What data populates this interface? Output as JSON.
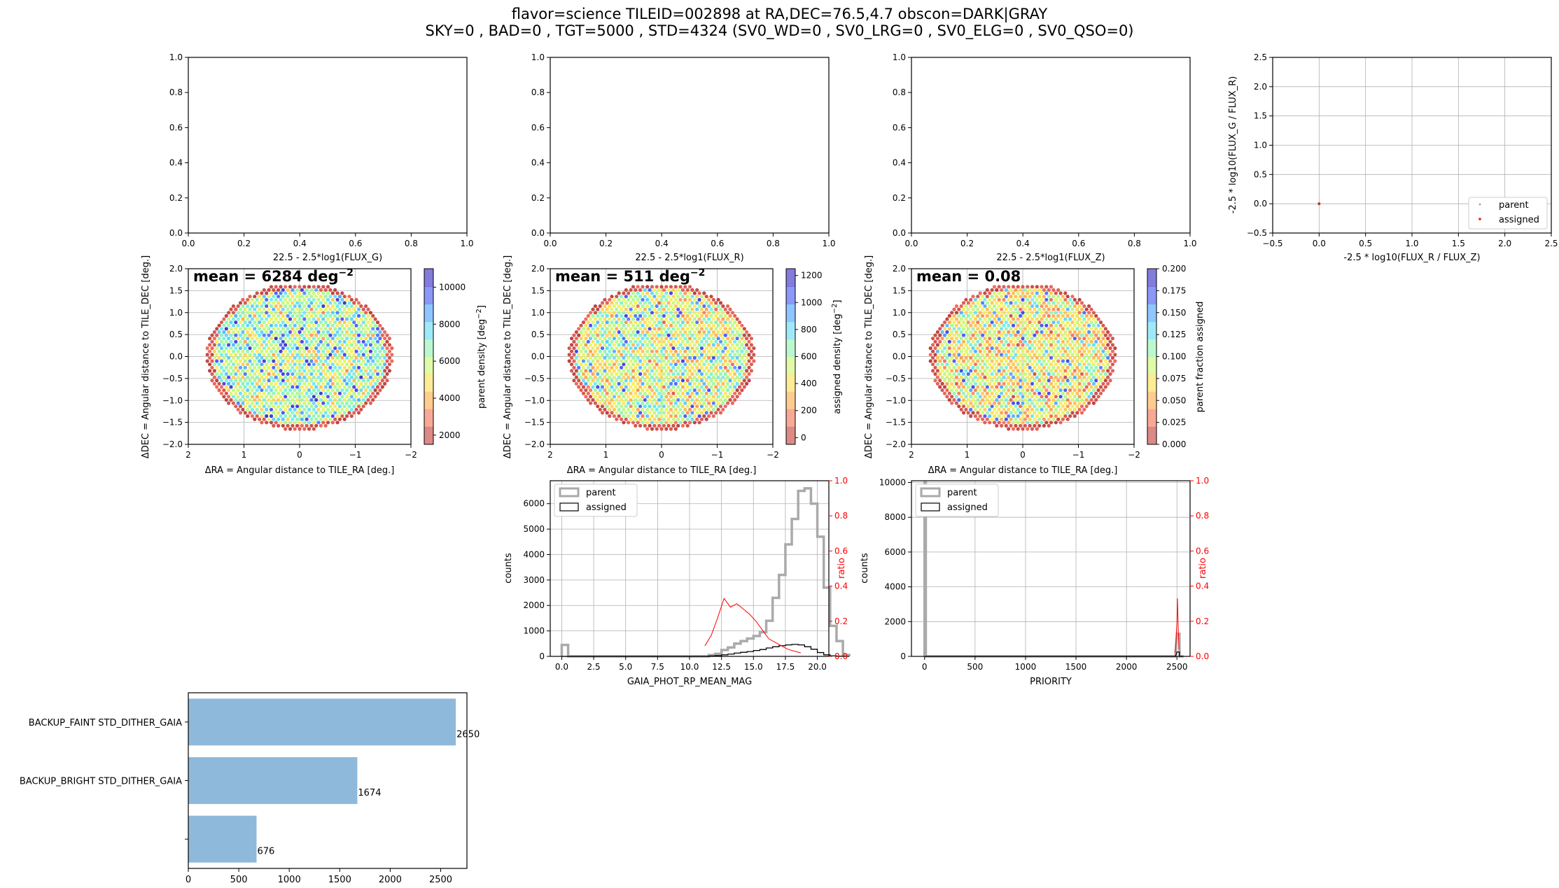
{
  "figure": {
    "title_line1": "flavor=science     TILEID=002898 at RA,DEC=76.5,4.7    obscon=DARK|GRAY",
    "title_line2": "SKY=0 , BAD=0 , TGT=5000 , STD=4324 (SV0_WD=0 , SV0_LRG=0 , SV0_ELG=0 , SV0_QSO=0)"
  },
  "colors": {
    "parent_hist": "#aaaaaa",
    "assigned_hist": "#000000",
    "ratio": "#ff0000",
    "bar": "#8fb9da",
    "grid": "#b0b0b0",
    "assigned_point": "#e41a1c"
  },
  "chart_data": [
    {
      "type": "scatter",
      "id": "mag-g",
      "xlabel": "22.5 - 2.5*log1(FLUX_G)",
      "ylabel": "",
      "xlim": [
        0,
        1
      ],
      "ylim": [
        0,
        1
      ],
      "xticks": [
        "0.0",
        "0.2",
        "0.4",
        "0.6",
        "0.8",
        "1.0"
      ],
      "yticks": [
        "0.0",
        "0.2",
        "0.4",
        "0.6",
        "0.8",
        "1.0"
      ],
      "grid": false,
      "series": []
    },
    {
      "type": "scatter",
      "id": "mag-r",
      "xlabel": "22.5 - 2.5*log1(FLUX_R)",
      "ylabel": "",
      "xlim": [
        0,
        1
      ],
      "ylim": [
        0,
        1
      ],
      "xticks": [
        "0.0",
        "0.2",
        "0.4",
        "0.6",
        "0.8",
        "1.0"
      ],
      "yticks": [
        "0.0",
        "0.2",
        "0.4",
        "0.6",
        "0.8",
        "1.0"
      ],
      "grid": false,
      "series": []
    },
    {
      "type": "scatter",
      "id": "mag-z",
      "xlabel": "22.5 - 2.5*log1(FLUX_Z)",
      "ylabel": "",
      "xlim": [
        0,
        1
      ],
      "ylim": [
        0,
        1
      ],
      "xticks": [
        "0.0",
        "0.2",
        "0.4",
        "0.6",
        "0.8",
        "1.0"
      ],
      "yticks": [
        "0.0",
        "0.2",
        "0.4",
        "0.6",
        "0.8",
        "1.0"
      ],
      "grid": false,
      "series": []
    },
    {
      "type": "scatter",
      "id": "color-color",
      "xlabel": "-2.5 * log10(FLUX_R / FLUX_Z)",
      "ylabel": "-2.5 * log10(FLUX_G / FLUX_R)",
      "xlim": [
        -0.5,
        2.5
      ],
      "ylim": [
        -0.5,
        2.5
      ],
      "xticks": [
        "−0.5",
        "0.0",
        "0.5",
        "1.0",
        "1.5",
        "2.0",
        "2.5"
      ],
      "yticks": [
        "−0.5",
        "0.0",
        "0.5",
        "1.0",
        "1.5",
        "2.0",
        "2.5"
      ],
      "grid": true,
      "legend": "lower-right",
      "series": [
        {
          "name": "parent",
          "color": "#aaaaaa",
          "points": [
            [
              0,
              0
            ]
          ]
        },
        {
          "name": "assigned",
          "color": "#e41a1c",
          "points": [
            [
              0,
              0
            ]
          ]
        }
      ]
    },
    {
      "type": "heatmap",
      "id": "sky-parent",
      "annotation": "mean = 6284 deg",
      "annotation_sup": "−2",
      "xlabel": "ΔRA = Angular distance to TILE_RA [deg.]",
      "ylabel": "ΔDEC = Angular distance to TILE_DEC [deg.]",
      "xlim": [
        2,
        -2
      ],
      "ylim": [
        -2,
        2
      ],
      "xticks": [
        "2",
        "1",
        "0",
        "−1",
        "−2"
      ],
      "yticks": [
        "−2.0",
        "−1.5",
        "−1.0",
        "−0.5",
        "0.0",
        "0.5",
        "1.0",
        "1.5",
        "2.0"
      ],
      "colorbar_label": "parent density [deg",
      "colorbar_label_sup": "−2",
      "colorbar_label_end": "]",
      "clim": [
        1500,
        11000
      ],
      "colorbar_ticks": [
        2000,
        4000,
        6000,
        8000,
        10000
      ],
      "colorbar_tick_labels": [
        "2000",
        "4000",
        "6000",
        "8000",
        "10000"
      ],
      "mean": 6284,
      "spread": 1800,
      "edge_low": true,
      "seed": 11
    },
    {
      "type": "heatmap",
      "id": "sky-assigned",
      "annotation": "mean = 511 deg",
      "annotation_sup": "−2",
      "xlabel": "ΔRA = Angular distance to TILE_RA [deg.]",
      "ylabel": "ΔDEC = Angular distance to TILE_DEC [deg.]",
      "xlim": [
        2,
        -2
      ],
      "ylim": [
        -2,
        2
      ],
      "xticks": [
        "2",
        "1",
        "0",
        "−1",
        "−2"
      ],
      "yticks": [
        "−2.0",
        "−1.5",
        "−1.0",
        "−0.5",
        "0.0",
        "0.5",
        "1.0",
        "1.5",
        "2.0"
      ],
      "colorbar_label": "assigned density [deg",
      "colorbar_label_sup": "−2",
      "colorbar_label_end": "]",
      "clim": [
        -50,
        1250
      ],
      "colorbar_ticks": [
        0,
        200,
        400,
        600,
        800,
        1000,
        1200
      ],
      "colorbar_tick_labels": [
        "0",
        "200",
        "400",
        "600",
        "800",
        "1000",
        "1200"
      ],
      "mean": 511,
      "spread": 260,
      "edge_low": true,
      "seed": 23
    },
    {
      "type": "heatmap",
      "id": "sky-fraction",
      "annotation": "mean = 0.08",
      "annotation_sup": "",
      "xlabel": "ΔRA = Angular distance to TILE_RA [deg.]",
      "ylabel": "ΔDEC = Angular distance to TILE_DEC [deg.]",
      "xlim": [
        2,
        -2
      ],
      "ylim": [
        -2,
        2
      ],
      "xticks": [
        "2",
        "1",
        "0",
        "−1",
        "−2"
      ],
      "yticks": [
        "−2.0",
        "−1.5",
        "−1.0",
        "−0.5",
        "0.0",
        "0.5",
        "1.0",
        "1.5",
        "2.0"
      ],
      "colorbar_label": "parent fraction assigned",
      "colorbar_label_sup": "",
      "colorbar_label_end": "",
      "clim": [
        0,
        0.2
      ],
      "colorbar_ticks": [
        0,
        0.025,
        0.05,
        0.075,
        0.1,
        0.125,
        0.15,
        0.175,
        0.2
      ],
      "colorbar_tick_labels": [
        "0.000",
        "0.025",
        "0.050",
        "0.075",
        "0.100",
        "0.125",
        "0.150",
        "0.175",
        "0.200"
      ],
      "mean": 0.08,
      "spread": 0.04,
      "edge_low": true,
      "seed": 37
    },
    {
      "type": "line",
      "id": "hist-gaia",
      "xlabel": "GAIA_PHOT_RP_MEAN_MAG",
      "ylabel": "counts",
      "ylabel_right": "ratio",
      "xlim": [
        -0.9,
        20.9
      ],
      "ylim": [
        0,
        6900
      ],
      "ylim_right": [
        0,
        1
      ],
      "xticks": [
        0,
        2.5,
        5,
        7.5,
        10,
        12.5,
        15,
        17.5,
        20
      ],
      "xtick_labels": [
        "0.0",
        "2.5",
        "5.0",
        "7.5",
        "10.0",
        "12.5",
        "15.0",
        "17.5",
        "20.0"
      ],
      "yticks": [
        0,
        1000,
        2000,
        3000,
        4000,
        5000,
        6000
      ],
      "ytick_labels": [
        "0",
        "1000",
        "2000",
        "3000",
        "4000",
        "5000",
        "6000"
      ],
      "yticks_right": [
        0,
        0.2,
        0.4,
        0.6,
        0.8,
        1.0
      ],
      "ytick_labels_right": [
        "0.0",
        "0.2",
        "0.4",
        "0.6",
        "0.8",
        "1.0"
      ],
      "legend": "upper-left",
      "bin_width": 0.5,
      "bins_start": 0,
      "series": [
        {
          "name": "parent",
          "values": [
            450,
            0,
            0,
            0,
            0,
            0,
            0,
            0,
            0,
            0,
            0,
            0,
            0,
            0,
            0,
            0,
            0,
            0,
            0,
            0,
            0,
            0,
            0,
            50,
            100,
            250,
            350,
            500,
            600,
            700,
            800,
            950,
            1400,
            2300,
            3200,
            4400,
            5400,
            6500,
            6600,
            6000,
            4700,
            2700,
            1200,
            600,
            50
          ]
        },
        {
          "name": "assigned",
          "values": [
            0,
            0,
            0,
            0,
            0,
            0,
            0,
            0,
            0,
            0,
            0,
            0,
            0,
            0,
            0,
            0,
            0,
            0,
            0,
            0,
            0,
            0,
            0,
            15,
            30,
            60,
            90,
            130,
            160,
            190,
            230,
            270,
            330,
            380,
            420,
            450,
            470,
            450,
            380,
            280,
            150,
            60,
            20,
            5,
            0
          ]
        },
        {
          "name": "ratio",
          "x": [
            11.2,
            11.7,
            12.2,
            12.7,
            13.2,
            13.7,
            14.2,
            14.7,
            15.2,
            15.7,
            16.2,
            16.7,
            17.2,
            17.7,
            18.2,
            18.7
          ],
          "values": [
            0.06,
            0.12,
            0.22,
            0.33,
            0.28,
            0.3,
            0.27,
            0.24,
            0.2,
            0.15,
            0.1,
            0.08,
            0.06,
            0.04,
            0.03,
            0.02
          ]
        }
      ]
    },
    {
      "type": "line",
      "id": "hist-priority",
      "xlabel": "PRIORITY",
      "ylabel": "counts",
      "ylabel_right": "ratio",
      "xlim": [
        -130,
        2630
      ],
      "ylim": [
        0,
        10100
      ],
      "ylim_right": [
        0,
        1
      ],
      "xticks": [
        0,
        500,
        1000,
        1500,
        2000,
        2500
      ],
      "xtick_labels": [
        "0",
        "500",
        "1000",
        "1500",
        "2000",
        "2500"
      ],
      "yticks": [
        0,
        2000,
        4000,
        6000,
        8000,
        10000
      ],
      "ytick_labels": [
        "0",
        "2000",
        "4000",
        "6000",
        "8000",
        "10000"
      ],
      "yticks_right": [
        0,
        0.2,
        0.4,
        0.6,
        0.8,
        1.0
      ],
      "ytick_labels_right": [
        "0.0",
        "0.2",
        "0.4",
        "0.6",
        "0.8",
        "1.0"
      ],
      "legend": "upper-left",
      "series": [
        {
          "name": "parent",
          "x": [
            0,
            2460,
            2500,
            2540
          ],
          "values": [
            10000,
            0,
            1300,
            0
          ]
        },
        {
          "name": "assigned",
          "x": [
            0,
            2460,
            2500,
            2540
          ],
          "values": [
            0,
            0,
            250,
            0
          ]
        },
        {
          "name": "ratio",
          "x": [
            2480,
            2490,
            2500,
            2505,
            2510,
            2515,
            2520
          ],
          "values": [
            0.02,
            0.08,
            0.2,
            0.33,
            0.22,
            0.12,
            0.04
          ]
        }
      ]
    },
    {
      "type": "bar",
      "id": "bar-targets",
      "orientation": "horizontal",
      "categories": [
        "BACKUP_FAINT STD_DITHER_GAIA",
        "BACKUP_BRIGHT STD_DITHER_GAIA",
        ""
      ],
      "values": [
        2650,
        1674,
        676
      ],
      "value_labels": [
        "2650",
        "1674",
        "676"
      ],
      "xlim": [
        0,
        2760
      ],
      "xticks": [
        0,
        500,
        1000,
        1500,
        2000,
        2500
      ],
      "xtick_labels": [
        "0",
        "500",
        "1000",
        "1500",
        "2000",
        "2500"
      ]
    }
  ]
}
